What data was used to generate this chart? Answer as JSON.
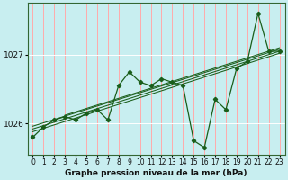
{
  "title": "Graphe pression niveau de la mer (hPa)",
  "bg_color": "#c8eef0",
  "vgrid_color": "#ffaaaa",
  "hgrid_color": "#ffffff",
  "line_color": "#1a5e1a",
  "x_labels": [
    "0",
    "1",
    "2",
    "3",
    "4",
    "5",
    "6",
    "7",
    "8",
    "9",
    "10",
    "11",
    "12",
    "13",
    "14",
    "15",
    "16",
    "17",
    "18",
    "19",
    "20",
    "21",
    "22",
    "23"
  ],
  "y_ticks": [
    1026,
    1027
  ],
  "ylim": [
    1025.55,
    1027.75
  ],
  "xlim": [
    -0.5,
    23.5
  ],
  "pressure_data": [
    1025.8,
    1025.95,
    1026.05,
    1026.1,
    1026.05,
    1026.15,
    1026.2,
    1026.05,
    1026.55,
    1026.75,
    1026.6,
    1026.55,
    1026.65,
    1026.6,
    1026.55,
    1025.75,
    1025.65,
    1026.35,
    1026.2,
    1026.8,
    1026.9,
    1027.6,
    1027.05,
    1027.05
  ],
  "trend_lines": [
    [
      0,
      1025.88,
      23,
      1027.02
    ],
    [
      0,
      1025.92,
      23,
      1027.05
    ],
    [
      0,
      1025.96,
      23,
      1027.08
    ],
    [
      3,
      1026.12,
      23,
      1027.1
    ]
  ],
  "title_fontsize": 6.5,
  "tick_fontsize": 5.5,
  "ytick_fontsize": 6.5
}
